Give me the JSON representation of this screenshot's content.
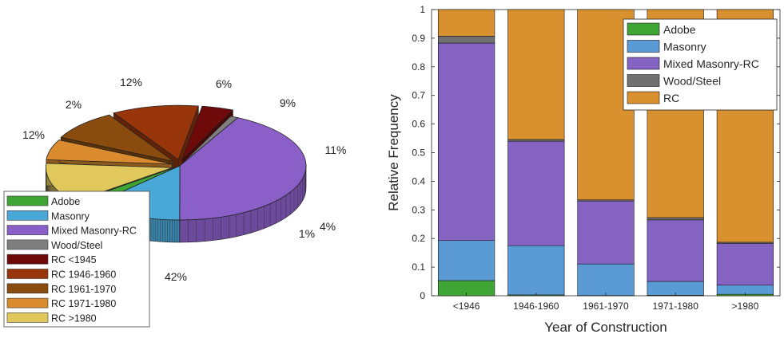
{
  "chart_data": [
    {
      "type": "pie",
      "style": "3d-exploded",
      "categories": [
        "Adobe",
        "Masonry",
        "Mixed Masonry-RC",
        "Wood/Steel",
        "RC <1945",
        "RC 1946-1960",
        "RC 1961-1970",
        "RC 1971-1980",
        "RC >1980"
      ],
      "values": [
        2,
        12,
        42,
        1,
        4,
        11,
        9,
        6,
        12
      ],
      "value_labels": [
        "2%",
        "12%",
        "42%",
        "1%",
        "4%",
        "11%",
        "9%",
        "6%",
        "12%"
      ],
      "exploded": [
        "RC <1945",
        "RC 1946-1960",
        "RC 1961-1970",
        "RC 1971-1980",
        "RC >1980"
      ],
      "colors": [
        "#3fa535",
        "#4aa8d8",
        "#8a5fc8",
        "#7f7f7f",
        "#6e0a0a",
        "#99350a",
        "#8a4b0e",
        "#d98b2e",
        "#e0c85c"
      ],
      "legend": {
        "position": "bottom-left",
        "entries": [
          "Adobe",
          "Masonry",
          "Mixed Masonry-RC",
          "Wood/Steel",
          "RC <1945",
          "RC 1946-1960",
          "RC 1961-1970",
          "RC 1971-1980",
          "RC >1980"
        ]
      }
    },
    {
      "type": "bar",
      "stacked": true,
      "xlabel": "Year of Construction",
      "ylabel": "Relative Frequency",
      "categories": [
        "<1946",
        "1946-1960",
        "1961-1970",
        "1971-1980",
        ">1980"
      ],
      "ylim": [
        0,
        1
      ],
      "yticks": [
        "0",
        "0.1",
        "0.2",
        "0.3",
        "0.4",
        "0.5",
        "0.6",
        "0.7",
        "0.8",
        "0.9",
        "1"
      ],
      "series": [
        {
          "name": "Adobe",
          "color": "#3fa535",
          "values": [
            0.053,
            0.003,
            0.001,
            0.002,
            0.005
          ]
        },
        {
          "name": "Masonry",
          "color": "#5b9bd5",
          "values": [
            0.14,
            0.172,
            0.11,
            0.048,
            0.032
          ]
        },
        {
          "name": "Mixed Masonry-RC",
          "color": "#8563c3",
          "values": [
            0.69,
            0.365,
            0.22,
            0.215,
            0.145
          ]
        },
        {
          "name": "Wood/Steel",
          "color": "#707070",
          "values": [
            0.024,
            0.006,
            0.004,
            0.008,
            0.005
          ]
        },
        {
          "name": "RC",
          "color": "#d9902f",
          "values": [
            0.093,
            0.454,
            0.665,
            0.727,
            0.813
          ]
        }
      ],
      "legend": {
        "position": "top-right"
      },
      "grid": false
    }
  ]
}
